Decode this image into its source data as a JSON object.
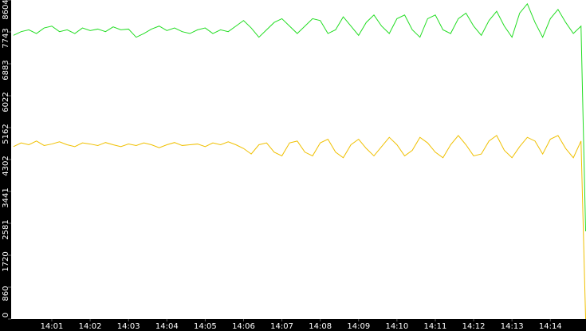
{
  "chart_data": {
    "type": "line",
    "x": [
      0,
      0.2,
      0.4,
      0.6,
      0.8,
      1.0,
      1.2,
      1.4,
      1.6,
      1.8,
      2.0,
      2.2,
      2.4,
      2.6,
      2.8,
      3.0,
      3.2,
      3.4,
      3.6,
      3.8,
      4.0,
      4.2,
      4.4,
      4.6,
      4.8,
      5.0,
      5.2,
      5.4,
      5.6,
      5.8,
      6.0,
      6.2,
      6.4,
      6.6,
      6.8,
      7.0,
      7.2,
      7.4,
      7.6,
      7.8,
      8.0,
      8.2,
      8.4,
      8.6,
      8.8,
      9.0,
      9.2,
      9.4,
      9.6,
      9.8,
      10.0,
      10.2,
      10.4,
      10.6,
      10.8,
      11.0,
      11.2,
      11.4,
      11.6,
      11.8,
      12.0,
      12.2,
      12.4,
      12.6,
      12.8,
      13.0,
      13.2,
      13.4,
      13.6,
      13.8,
      14.0,
      14.2,
      14.4,
      14.6,
      14.8,
      14.92
    ],
    "series": [
      {
        "color": "#22dd22",
        "values": [
          7650,
          7750,
          7800,
          7700,
          7850,
          7900,
          7750,
          7800,
          7700,
          7850,
          7780,
          7820,
          7750,
          7880,
          7800,
          7820,
          7600,
          7700,
          7820,
          7900,
          7780,
          7850,
          7750,
          7700,
          7800,
          7850,
          7700,
          7800,
          7750,
          7900,
          8050,
          7850,
          7600,
          7800,
          8000,
          8100,
          7900,
          7700,
          7900,
          8100,
          8050,
          7700,
          7800,
          8150,
          7900,
          7650,
          8000,
          8200,
          7900,
          7700,
          8100,
          8200,
          7800,
          7600,
          8100,
          8200,
          7800,
          7700,
          8100,
          8250,
          7900,
          7650,
          8050,
          8300,
          7900,
          7600,
          8250,
          8500,
          8000,
          7600,
          8100,
          8350,
          8000,
          7700,
          7900,
          2366
        ]
      },
      {
        "color": "#f0c000",
        "values": [
          4650,
          4750,
          4700,
          4800,
          4680,
          4720,
          4780,
          4700,
          4650,
          4750,
          4720,
          4680,
          4760,
          4700,
          4650,
          4720,
          4680,
          4750,
          4700,
          4620,
          4700,
          4760,
          4680,
          4700,
          4720,
          4650,
          4750,
          4700,
          4780,
          4700,
          4600,
          4450,
          4700,
          4750,
          4500,
          4400,
          4750,
          4800,
          4500,
          4400,
          4750,
          4850,
          4500,
          4350,
          4700,
          4850,
          4600,
          4400,
          4650,
          4900,
          4700,
          4400,
          4550,
          4900,
          4750,
          4500,
          4350,
          4700,
          4950,
          4700,
          4400,
          4450,
          4800,
          4950,
          4550,
          4350,
          4650,
          4900,
          4800,
          4450,
          4850,
          4950,
          4600,
          4350,
          4800,
          0
        ]
      }
    ],
    "xlim": [
      -0.06,
      14.93
    ],
    "xticks": [
      {
        "value": 1,
        "label": "14:01"
      },
      {
        "value": 2,
        "label": "14:02"
      },
      {
        "value": 3,
        "label": "14:03"
      },
      {
        "value": 4,
        "label": "14:04"
      },
      {
        "value": 5,
        "label": "14:05"
      },
      {
        "value": 6,
        "label": "14:06"
      },
      {
        "value": 7,
        "label": "14:07"
      },
      {
        "value": 8,
        "label": "14:08"
      },
      {
        "value": 9,
        "label": "14:09"
      },
      {
        "value": 10,
        "label": "14:10"
      },
      {
        "value": 11,
        "label": "14:11"
      },
      {
        "value": 12,
        "label": "14:12"
      },
      {
        "value": 13,
        "label": "14:13"
      },
      {
        "value": 14,
        "label": "14:14"
      }
    ],
    "ylim": [
      0,
      8604
    ],
    "yticks": [
      0,
      860,
      1720,
      2581,
      3441,
      4302,
      5162,
      6022,
      6883,
      7743,
      8604
    ]
  }
}
